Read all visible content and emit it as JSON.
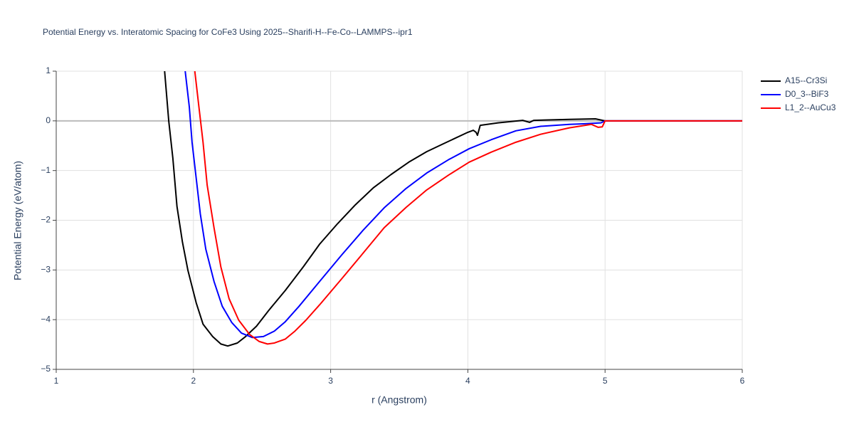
{
  "chart_data": {
    "type": "line",
    "title": "Potential Energy vs. Interatomic Spacing for CoFe3 Using 2025--Sharifi-H--Fe-Co--LAMMPS--ipr1",
    "x_label": "r (Angstrom)",
    "y_label": "Potential Energy (eV/atom)",
    "xlim": [
      1,
      6
    ],
    "ylim": [
      -5,
      1
    ],
    "xticks": [
      1,
      2,
      3,
      4,
      5,
      6
    ],
    "yticks": [
      {
        "value": -5,
        "label": "−5"
      },
      {
        "value": -4,
        "label": "−4"
      },
      {
        "value": -3,
        "label": "−3"
      },
      {
        "value": -2,
        "label": "−2"
      },
      {
        "value": -1,
        "label": "−1"
      },
      0,
      1
    ],
    "grid": true,
    "legend": "right",
    "series": [
      {
        "name": "A15--Cr3Si",
        "color": "#000000",
        "x": [
          1.79,
          1.82,
          1.85,
          1.88,
          1.92,
          1.96,
          2.02,
          2.07,
          2.14,
          2.2,
          2.25,
          2.32,
          2.38,
          2.46,
          2.55,
          2.67,
          2.8,
          2.92,
          3.05,
          3.18,
          3.31,
          3.44,
          3.57,
          3.7,
          3.83,
          4.0,
          4.04,
          4.06,
          4.07,
          4.09,
          4.22,
          4.4,
          4.45,
          4.48,
          4.74,
          4.93,
          5.0,
          6.0
        ],
        "values": [
          1,
          0,
          -0.75,
          -1.72,
          -2.44,
          -3.01,
          -3.66,
          -4.09,
          -4.34,
          -4.49,
          -4.53,
          -4.47,
          -4.34,
          -4.13,
          -3.81,
          -3.41,
          -2.94,
          -2.48,
          -2.07,
          -1.69,
          -1.35,
          -1.08,
          -0.83,
          -0.62,
          -0.45,
          -0.23,
          -0.19,
          -0.23,
          -0.29,
          -0.09,
          -0.04,
          0.01,
          -0.03,
          0.01,
          0.03,
          0.04,
          0,
          0
        ]
      },
      {
        "name": "D0_3--BiF3",
        "color": "#0000ff",
        "x": [
          1.94,
          1.97,
          1.99,
          2.02,
          2.05,
          2.09,
          2.15,
          2.21,
          2.28,
          2.35,
          2.43,
          2.51,
          2.59,
          2.67,
          2.77,
          2.92,
          3.08,
          3.24,
          3.39,
          3.55,
          3.7,
          3.86,
          4.01,
          4.17,
          4.35,
          4.53,
          4.74,
          4.84,
          4.97,
          5.0,
          6.0
        ],
        "values": [
          1,
          0.28,
          -0.43,
          -1.15,
          -1.87,
          -2.58,
          -3.23,
          -3.73,
          -4.06,
          -4.27,
          -4.36,
          -4.34,
          -4.23,
          -4.04,
          -3.73,
          -3.23,
          -2.7,
          -2.19,
          -1.75,
          -1.36,
          -1.05,
          -0.78,
          -0.56,
          -0.38,
          -0.2,
          -0.11,
          -0.07,
          -0.06,
          -0.04,
          0,
          0
        ]
      },
      {
        "name": "L1_2--AuCu3",
        "color": "#ff0000",
        "x": [
          2.01,
          2.04,
          2.07,
          2.1,
          2.15,
          2.2,
          2.26,
          2.33,
          2.41,
          2.48,
          2.54,
          2.59,
          2.67,
          2.74,
          2.82,
          2.92,
          3.08,
          3.24,
          3.39,
          3.55,
          3.7,
          3.86,
          4.01,
          4.17,
          4.35,
          4.53,
          4.74,
          4.9,
          4.95,
          4.98,
          5.0,
          6.0
        ],
        "values": [
          1,
          0.28,
          -0.43,
          -1.29,
          -2.15,
          -2.94,
          -3.58,
          -4.01,
          -4.3,
          -4.44,
          -4.49,
          -4.47,
          -4.39,
          -4.23,
          -4.01,
          -3.7,
          -3.18,
          -2.65,
          -2.15,
          -1.74,
          -1.39,
          -1.09,
          -0.83,
          -0.63,
          -0.43,
          -0.27,
          -0.14,
          -0.07,
          -0.13,
          -0.12,
          0,
          0
        ]
      }
    ]
  }
}
